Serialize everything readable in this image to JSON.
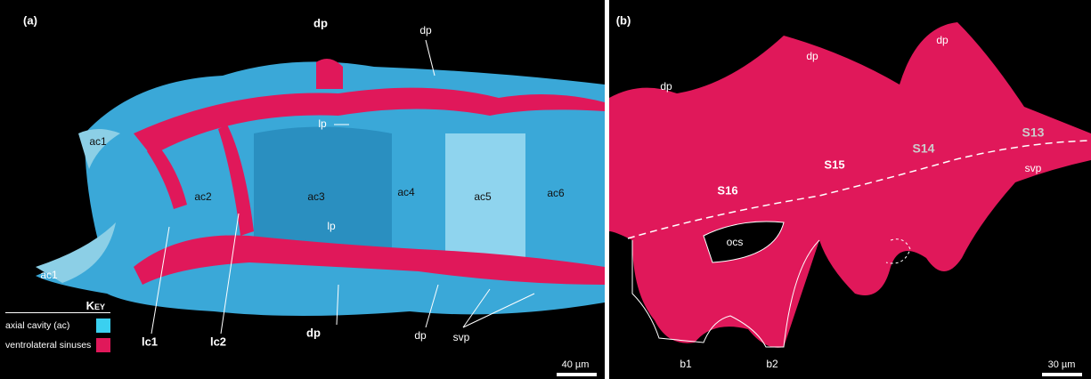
{
  "panel_a": {
    "label": "(a)",
    "annotations": [
      "dp",
      "dp",
      "lp",
      "ac1",
      "ac2",
      "ac3",
      "ac4",
      "ac5",
      "ac6",
      "lp",
      "ac1",
      "lc1",
      "lc2",
      "dp",
      "dp",
      "svp"
    ],
    "key": {
      "title": "Key",
      "items": [
        "axial cavity (ac)",
        "ventrolateral sinuses"
      ]
    },
    "scale_bar": "40 µm"
  },
  "panel_b": {
    "label": "(b)",
    "annotations": [
      "dp",
      "dp",
      "dp",
      "S13",
      "S14",
      "S15",
      "S16",
      "svp",
      "ocs",
      "b1",
      "b2"
    ],
    "scale_bar": "30 µm"
  }
}
